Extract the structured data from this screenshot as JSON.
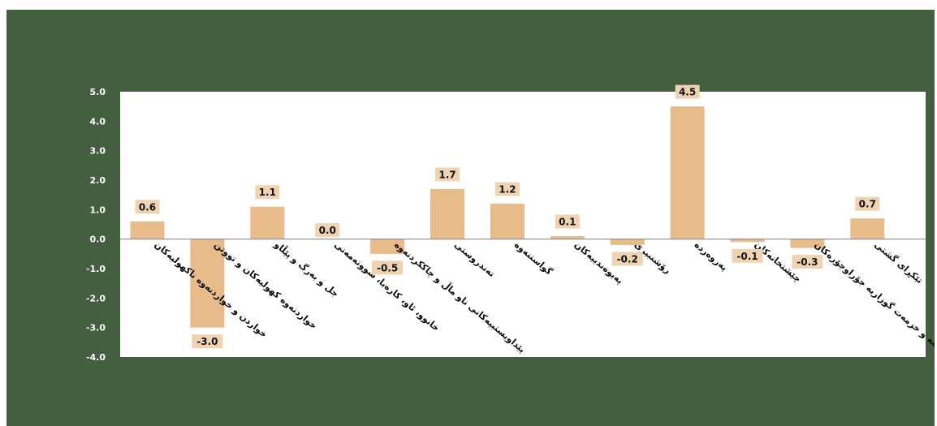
{
  "chart_data": {
    "type": "bar",
    "title": "",
    "xlabel": "",
    "ylabel": "",
    "ylim": [
      -4.0,
      5.0
    ],
    "ytick_step": 1.0,
    "grid": false,
    "legend": "none",
    "colors": {
      "background": "#445e40",
      "plot_area": "#ffffff",
      "bar": "#e8bb8b",
      "label_box": "#efd3b3",
      "zero_line": "#8c8c8c",
      "tick_text": "#ffffff"
    },
    "categories": [
      "خواردن و خواردنەوە ناکهولیەکان",
      "خواردنەوە کهولیەکان و تووتن",
      "جل و بەرگ و پێڵاو",
      "خانوو، ئاو، کارەبا، سووتەمەنی",
      "پێداویستییەکانی ناو ماڵ و چاککردنەوە",
      "تەندروستی",
      "گواستنەوە",
      "پەیوەندییەکان",
      "رۆشنبیری",
      "پەروەردە",
      "چێشتخانەکان",
      "کەرەستە و خزمەت گوزاریە جۆراوجۆرەکان",
      "تێکڕای گشتی"
    ],
    "values": [
      0.6,
      -3.0,
      1.1,
      0.0,
      -0.5,
      1.7,
      1.2,
      0.1,
      -0.2,
      4.5,
      -0.1,
      -0.3,
      0.7
    ],
    "data_labels": [
      "0.6",
      "-3.0",
      "1.1",
      "0.0",
      "-0.5",
      "1.7",
      "1.2",
      "0.1",
      "-0.2",
      "4.5",
      "-0.1",
      "-0.3",
      "0.7"
    ],
    "ytick_labels": [
      "5.0",
      "4.0",
      "3.0",
      "2.0",
      "1.0",
      "0.0",
      "-1.0",
      "-2.0",
      "-3.0",
      "-4.0"
    ]
  }
}
